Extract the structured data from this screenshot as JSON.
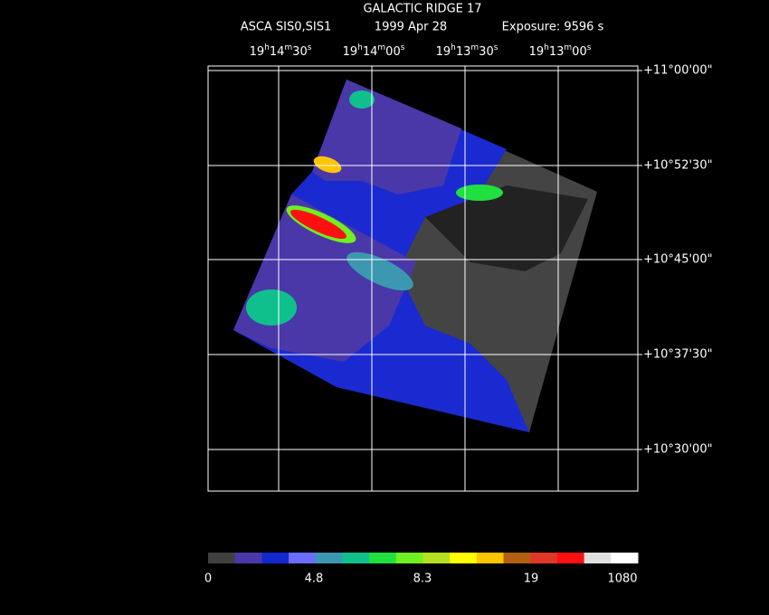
{
  "header": {
    "title": "GALACTIC RIDGE 17",
    "instrument": "ASCA SIS0,SIS1",
    "date": "1999 Apr 28",
    "exposure": "Exposure: 9596 s"
  },
  "ra_labels": [
    [
      "19",
      "h",
      "14",
      "m",
      "30",
      "s"
    ],
    [
      "19",
      "h",
      "14",
      "m",
      "00",
      "s"
    ],
    [
      "19",
      "h",
      "13",
      "m",
      "30",
      "s"
    ],
    [
      "19",
      "h",
      "13",
      "m",
      "00",
      "s"
    ]
  ],
  "dec_labels": [
    "+11°00'00\"",
    "+10°52'30\"",
    "+10°45'00\"",
    "+10°37'30\"",
    "+10°30'00\""
  ],
  "colorbar": {
    "colors": [
      "#404040",
      "#4a38a8",
      "#1428d0",
      "#6c6cff",
      "#3c98b0",
      "#10c08c",
      "#20e040",
      "#70f020",
      "#b4e020",
      "#ffff00",
      "#ffc400",
      "#b06010",
      "#e03828",
      "#ff1010",
      "#e0e0e0",
      "#ffffff"
    ],
    "labels": [
      0,
      4.8,
      8.3,
      19,
      1080
    ]
  }
}
